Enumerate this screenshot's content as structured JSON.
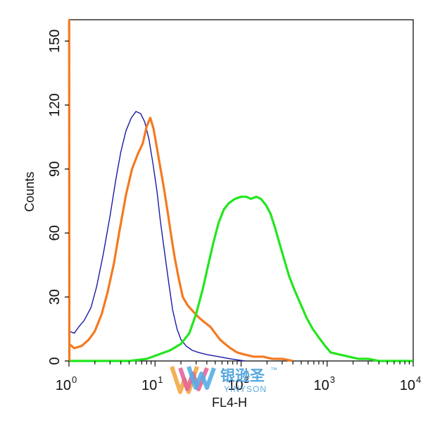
{
  "chart_data": {
    "type": "line",
    "title": "",
    "xlabel": "FL4-H",
    "ylabel": "Counts",
    "xscale": "log",
    "xlim": [
      1,
      10000
    ],
    "ylim": [
      0,
      160
    ],
    "grid": false,
    "x_ticks": [
      {
        "value": 1,
        "base": "10",
        "exp": "0"
      },
      {
        "value": 10,
        "base": "10",
        "exp": "1"
      },
      {
        "value": 100,
        "base": "10",
        "exp": "2"
      },
      {
        "value": 1000,
        "base": "10",
        "exp": "3"
      },
      {
        "value": 10000,
        "base": "10",
        "exp": "4"
      }
    ],
    "y_ticks": [
      {
        "value": 0,
        "label": "0"
      },
      {
        "value": 30,
        "label": "30"
      },
      {
        "value": 60,
        "label": "60"
      },
      {
        "value": 90,
        "label": "90"
      },
      {
        "value": 120,
        "label": "120"
      },
      {
        "value": 150,
        "label": "150"
      }
    ],
    "series": [
      {
        "color": "#1a1aa6",
        "points": [
          [
            1.0,
            14
          ],
          [
            1.15,
            13
          ],
          [
            1.3,
            16
          ],
          [
            1.5,
            19
          ],
          [
            1.8,
            25
          ],
          [
            2.1,
            35
          ],
          [
            2.5,
            50
          ],
          [
            3.0,
            68
          ],
          [
            3.5,
            85
          ],
          [
            4.0,
            98
          ],
          [
            4.6,
            108
          ],
          [
            5.3,
            114
          ],
          [
            6.0,
            117
          ],
          [
            6.8,
            116
          ],
          [
            7.6,
            112
          ],
          [
            8.5,
            104
          ],
          [
            9.5,
            92
          ],
          [
            10.5,
            80
          ],
          [
            11.5,
            66
          ],
          [
            13,
            50
          ],
          [
            14.5,
            36
          ],
          [
            16,
            24
          ],
          [
            18,
            15
          ],
          [
            20,
            10
          ],
          [
            23,
            7
          ],
          [
            27,
            5
          ],
          [
            32,
            4
          ],
          [
            40,
            3
          ],
          [
            55,
            2
          ],
          [
            75,
            1
          ],
          [
            110,
            0
          ]
        ]
      },
      {
        "color": "#f47a20",
        "points": [
          [
            1.0,
            8
          ],
          [
            1.15,
            6
          ],
          [
            1.4,
            7
          ],
          [
            1.7,
            10
          ],
          [
            2.0,
            14
          ],
          [
            2.4,
            22
          ],
          [
            2.8,
            32
          ],
          [
            3.3,
            45
          ],
          [
            3.9,
            62
          ],
          [
            4.6,
            78
          ],
          [
            5.4,
            90
          ],
          [
            6.3,
            97
          ],
          [
            7.2,
            102
          ],
          [
            8.0,
            110
          ],
          [
            8.8,
            114
          ],
          [
            9.6,
            109
          ],
          [
            10.5,
            100
          ],
          [
            11.6,
            90
          ],
          [
            12.8,
            80
          ],
          [
            14,
            70
          ],
          [
            15.5,
            58
          ],
          [
            17,
            48
          ],
          [
            19,
            38
          ],
          [
            21,
            30
          ],
          [
            24,
            26
          ],
          [
            28,
            23
          ],
          [
            33,
            20
          ],
          [
            38,
            18
          ],
          [
            44,
            16
          ],
          [
            50,
            13
          ],
          [
            57,
            10
          ],
          [
            65,
            8
          ],
          [
            75,
            6
          ],
          [
            90,
            4
          ],
          [
            110,
            3
          ],
          [
            140,
            2
          ],
          [
            180,
            2
          ],
          [
            230,
            1
          ],
          [
            300,
            1
          ],
          [
            400,
            0
          ]
        ]
      },
      {
        "color": "#22e61e",
        "points": [
          [
            1.0,
            0
          ],
          [
            5,
            0
          ],
          [
            8,
            1
          ],
          [
            11,
            3
          ],
          [
            15,
            5
          ],
          [
            20,
            8
          ],
          [
            25,
            13
          ],
          [
            30,
            22
          ],
          [
            36,
            34
          ],
          [
            42,
            46
          ],
          [
            48,
            56
          ],
          [
            55,
            65
          ],
          [
            63,
            71
          ],
          [
            72,
            74
          ],
          [
            85,
            76
          ],
          [
            100,
            77
          ],
          [
            115,
            77
          ],
          [
            130,
            76
          ],
          [
            150,
            77
          ],
          [
            170,
            76
          ],
          [
            195,
            73
          ],
          [
            220,
            69
          ],
          [
            250,
            62
          ],
          [
            280,
            55
          ],
          [
            320,
            47
          ],
          [
            360,
            40
          ],
          [
            420,
            33
          ],
          [
            500,
            26
          ],
          [
            580,
            20
          ],
          [
            680,
            15
          ],
          [
            800,
            11
          ],
          [
            950,
            7
          ],
          [
            1100,
            4
          ],
          [
            1400,
            3
          ],
          [
            1800,
            2
          ],
          [
            2300,
            1
          ],
          [
            3000,
            1
          ],
          [
            4000,
            0
          ],
          [
            10000,
            0
          ]
        ]
      },
      {
        "color": "#f47a20",
        "points": [
          [
            1.0,
            160
          ],
          [
            1.005,
            160
          ],
          [
            1.01,
            0
          ]
        ]
      }
    ]
  },
  "watermark": {
    "text": "银逊圣",
    "sub": "YINYSON",
    "mark": "™"
  }
}
